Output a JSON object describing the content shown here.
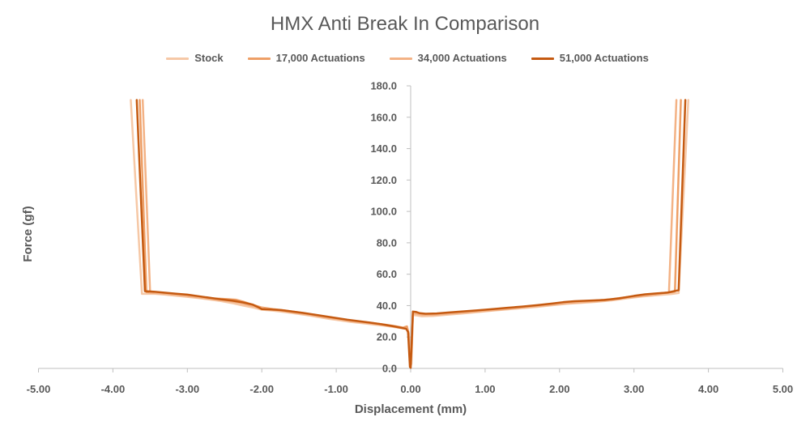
{
  "chart_data": {
    "type": "line",
    "title": "HMX Anti Break In Comparison",
    "xlabel": "Displacement (mm)",
    "ylabel": "Force (gf)",
    "xlim": [
      -5,
      5
    ],
    "ylim": [
      0,
      180
    ],
    "x_tick_labels": [
      "-5.00",
      "-4.00",
      "-3.00",
      "-2.00",
      "-1.00",
      "0.00",
      "1.00",
      "2.00",
      "3.00",
      "4.00",
      "5.00"
    ],
    "y_tick_labels": [
      "0.0",
      "20.0",
      "40.0",
      "60.0",
      "80.0",
      "100.0",
      "120.0",
      "140.0",
      "160.0",
      "180.0"
    ],
    "grid": false,
    "legend_position": "top",
    "series": [
      {
        "name": "Stock",
        "color": "#F6C8A6",
        "points": [
          [
            -3.76,
            171
          ],
          [
            -3.61,
            47.5
          ],
          [
            -3.45,
            47.6
          ],
          [
            -3.3,
            47.0
          ],
          [
            -3.15,
            46.3
          ],
          [
            -3.0,
            45.6
          ],
          [
            -2.85,
            44.8
          ],
          [
            -2.7,
            43.9
          ],
          [
            -2.55,
            42.9
          ],
          [
            -2.4,
            41.6
          ],
          [
            -2.25,
            40.0
          ],
          [
            -2.1,
            38.6
          ],
          [
            -2.0,
            37.4
          ],
          [
            -1.85,
            36.8
          ],
          [
            -1.7,
            36.0
          ],
          [
            -1.55,
            35.0
          ],
          [
            -1.4,
            34.0
          ],
          [
            -1.25,
            32.8
          ],
          [
            -1.1,
            31.6
          ],
          [
            -0.95,
            30.6
          ],
          [
            -0.8,
            29.6
          ],
          [
            -0.65,
            28.8
          ],
          [
            -0.5,
            28.0
          ],
          [
            -0.35,
            27.2
          ],
          [
            -0.2,
            26.2
          ],
          [
            -0.1,
            25.5
          ],
          [
            -0.05,
            26.3
          ],
          [
            -0.03,
            21.0
          ],
          [
            -0.005,
            1.0
          ],
          [
            0.01,
            3.0
          ],
          [
            0.03,
            34.0
          ],
          [
            0.08,
            33.8
          ],
          [
            0.15,
            33.2
          ],
          [
            0.3,
            33.4
          ],
          [
            0.5,
            34.2
          ],
          [
            0.7,
            35.0
          ],
          [
            0.9,
            35.9
          ],
          [
            1.1,
            36.8
          ],
          [
            1.3,
            37.6
          ],
          [
            1.5,
            38.4
          ],
          [
            1.7,
            39.2
          ],
          [
            1.9,
            40.2
          ],
          [
            2.1,
            41.2
          ],
          [
            2.3,
            41.8
          ],
          [
            2.5,
            42.4
          ],
          [
            2.7,
            43.3
          ],
          [
            2.9,
            44.6
          ],
          [
            3.1,
            45.8
          ],
          [
            3.3,
            46.6
          ],
          [
            3.5,
            47.4
          ],
          [
            3.6,
            48.0
          ],
          [
            3.73,
            171
          ]
        ]
      },
      {
        "name": "17,000 Actuations",
        "color": "#EE9F66",
        "points": [
          [
            -3.64,
            171
          ],
          [
            -3.55,
            48.6
          ],
          [
            -3.4,
            48.2
          ],
          [
            -3.25,
            47.5
          ],
          [
            -3.1,
            46.9
          ],
          [
            -2.95,
            46.3
          ],
          [
            -2.8,
            45.5
          ],
          [
            -2.65,
            44.6
          ],
          [
            -2.5,
            44.2
          ],
          [
            -2.35,
            43.8
          ],
          [
            -2.25,
            42.5
          ],
          [
            -2.1,
            40.2
          ],
          [
            -2.0,
            38.8
          ],
          [
            -1.85,
            37.8
          ],
          [
            -1.7,
            37.0
          ],
          [
            -1.55,
            36.0
          ],
          [
            -1.4,
            34.9
          ],
          [
            -1.25,
            33.7
          ],
          [
            -1.1,
            32.6
          ],
          [
            -0.95,
            31.5
          ],
          [
            -0.8,
            30.5
          ],
          [
            -0.65,
            29.6
          ],
          [
            -0.5,
            28.8
          ],
          [
            -0.35,
            27.9
          ],
          [
            -0.2,
            26.8
          ],
          [
            -0.1,
            26.0
          ],
          [
            -0.05,
            26.8
          ],
          [
            -0.025,
            22.0
          ],
          [
            -0.005,
            1.0
          ],
          [
            0.012,
            12.0
          ],
          [
            0.03,
            35.6
          ],
          [
            0.08,
            35.2
          ],
          [
            0.15,
            34.6
          ],
          [
            0.3,
            34.5
          ],
          [
            0.5,
            35.2
          ],
          [
            0.7,
            35.9
          ],
          [
            0.9,
            36.7
          ],
          [
            1.1,
            37.5
          ],
          [
            1.3,
            38.3
          ],
          [
            1.5,
            39.2
          ],
          [
            1.7,
            40.1
          ],
          [
            1.9,
            41.0
          ],
          [
            2.1,
            41.9
          ],
          [
            2.3,
            42.6
          ],
          [
            2.5,
            43.3
          ],
          [
            2.7,
            44.1
          ],
          [
            2.9,
            45.4
          ],
          [
            3.1,
            46.6
          ],
          [
            3.3,
            47.6
          ],
          [
            3.5,
            48.6
          ],
          [
            3.55,
            49.0
          ],
          [
            3.63,
            171
          ]
        ]
      },
      {
        "name": "34,000 Actuations",
        "color": "#F3B285",
        "points": [
          [
            -3.6,
            171
          ],
          [
            -3.5,
            48.2
          ],
          [
            -3.35,
            47.8
          ],
          [
            -3.2,
            47.1
          ],
          [
            -3.05,
            46.4
          ],
          [
            -2.9,
            45.6
          ],
          [
            -2.75,
            44.7
          ],
          [
            -2.6,
            43.8
          ],
          [
            -2.45,
            43.0
          ],
          [
            -2.3,
            41.8
          ],
          [
            -2.15,
            40.0
          ],
          [
            -2.0,
            38.4
          ],
          [
            -1.85,
            37.4
          ],
          [
            -1.7,
            36.5
          ],
          [
            -1.55,
            35.5
          ],
          [
            -1.4,
            34.5
          ],
          [
            -1.25,
            33.3
          ],
          [
            -1.1,
            32.2
          ],
          [
            -0.95,
            31.2
          ],
          [
            -0.8,
            30.2
          ],
          [
            -0.65,
            29.3
          ],
          [
            -0.5,
            28.4
          ],
          [
            -0.35,
            27.5
          ],
          [
            -0.2,
            26.5
          ],
          [
            -0.1,
            25.7
          ],
          [
            -0.05,
            25.4
          ],
          [
            -0.025,
            21.5
          ],
          [
            -0.005,
            1.0
          ],
          [
            0.012,
            10.0
          ],
          [
            0.03,
            35.0
          ],
          [
            0.08,
            34.8
          ],
          [
            0.15,
            34.2
          ],
          [
            0.3,
            34.1
          ],
          [
            0.5,
            34.8
          ],
          [
            0.7,
            35.5
          ],
          [
            0.9,
            36.3
          ],
          [
            1.1,
            37.1
          ],
          [
            1.3,
            37.9
          ],
          [
            1.5,
            38.8
          ],
          [
            1.7,
            39.7
          ],
          [
            1.9,
            40.6
          ],
          [
            2.1,
            41.5
          ],
          [
            2.3,
            42.2
          ],
          [
            2.5,
            42.9
          ],
          [
            2.7,
            43.8
          ],
          [
            2.9,
            45.0
          ],
          [
            3.1,
            46.1
          ],
          [
            3.3,
            47.1
          ],
          [
            3.47,
            48.5
          ],
          [
            3.57,
            171
          ]
        ]
      },
      {
        "name": "51,000 Actuations",
        "color": "#C55A11",
        "points": [
          [
            -3.68,
            171
          ],
          [
            -3.57,
            49.2
          ],
          [
            -3.45,
            48.9
          ],
          [
            -3.3,
            48.2
          ],
          [
            -3.15,
            47.6
          ],
          [
            -3.0,
            47.0
          ],
          [
            -2.85,
            46.0
          ],
          [
            -2.7,
            45.0
          ],
          [
            -2.55,
            44.0
          ],
          [
            -2.4,
            43.2
          ],
          [
            -2.25,
            42.0
          ],
          [
            -2.12,
            40.6
          ],
          [
            -2.05,
            39.0
          ],
          [
            -2.0,
            37.8
          ],
          [
            -1.9,
            37.6
          ],
          [
            -1.75,
            37.2
          ],
          [
            -1.6,
            36.3
          ],
          [
            -1.45,
            35.4
          ],
          [
            -1.3,
            34.3
          ],
          [
            -1.15,
            33.2
          ],
          [
            -1.0,
            32.1
          ],
          [
            -0.85,
            31.0
          ],
          [
            -0.7,
            30.1
          ],
          [
            -0.55,
            29.2
          ],
          [
            -0.4,
            28.2
          ],
          [
            -0.25,
            27.0
          ],
          [
            -0.12,
            25.8
          ],
          [
            -0.06,
            25.2
          ],
          [
            -0.035,
            23.2
          ],
          [
            -0.01,
            1.0
          ],
          [
            0.0,
            0.4
          ],
          [
            0.015,
            18.0
          ],
          [
            0.03,
            36.2
          ],
          [
            0.07,
            36.0
          ],
          [
            0.12,
            35.2
          ],
          [
            0.2,
            34.8
          ],
          [
            0.35,
            35.0
          ],
          [
            0.5,
            35.6
          ],
          [
            0.7,
            36.3
          ],
          [
            0.9,
            37.0
          ],
          [
            1.1,
            37.8
          ],
          [
            1.3,
            38.6
          ],
          [
            1.5,
            39.4
          ],
          [
            1.7,
            40.3
          ],
          [
            1.9,
            41.3
          ],
          [
            2.05,
            42.2
          ],
          [
            2.2,
            42.8
          ],
          [
            2.4,
            43.2
          ],
          [
            2.6,
            43.6
          ],
          [
            2.8,
            44.6
          ],
          [
            3.0,
            46.2
          ],
          [
            3.15,
            47.2
          ],
          [
            3.3,
            47.8
          ],
          [
            3.45,
            48.3
          ],
          [
            3.55,
            49.3
          ],
          [
            3.6,
            49.8
          ],
          [
            3.69,
            171
          ]
        ]
      }
    ]
  }
}
